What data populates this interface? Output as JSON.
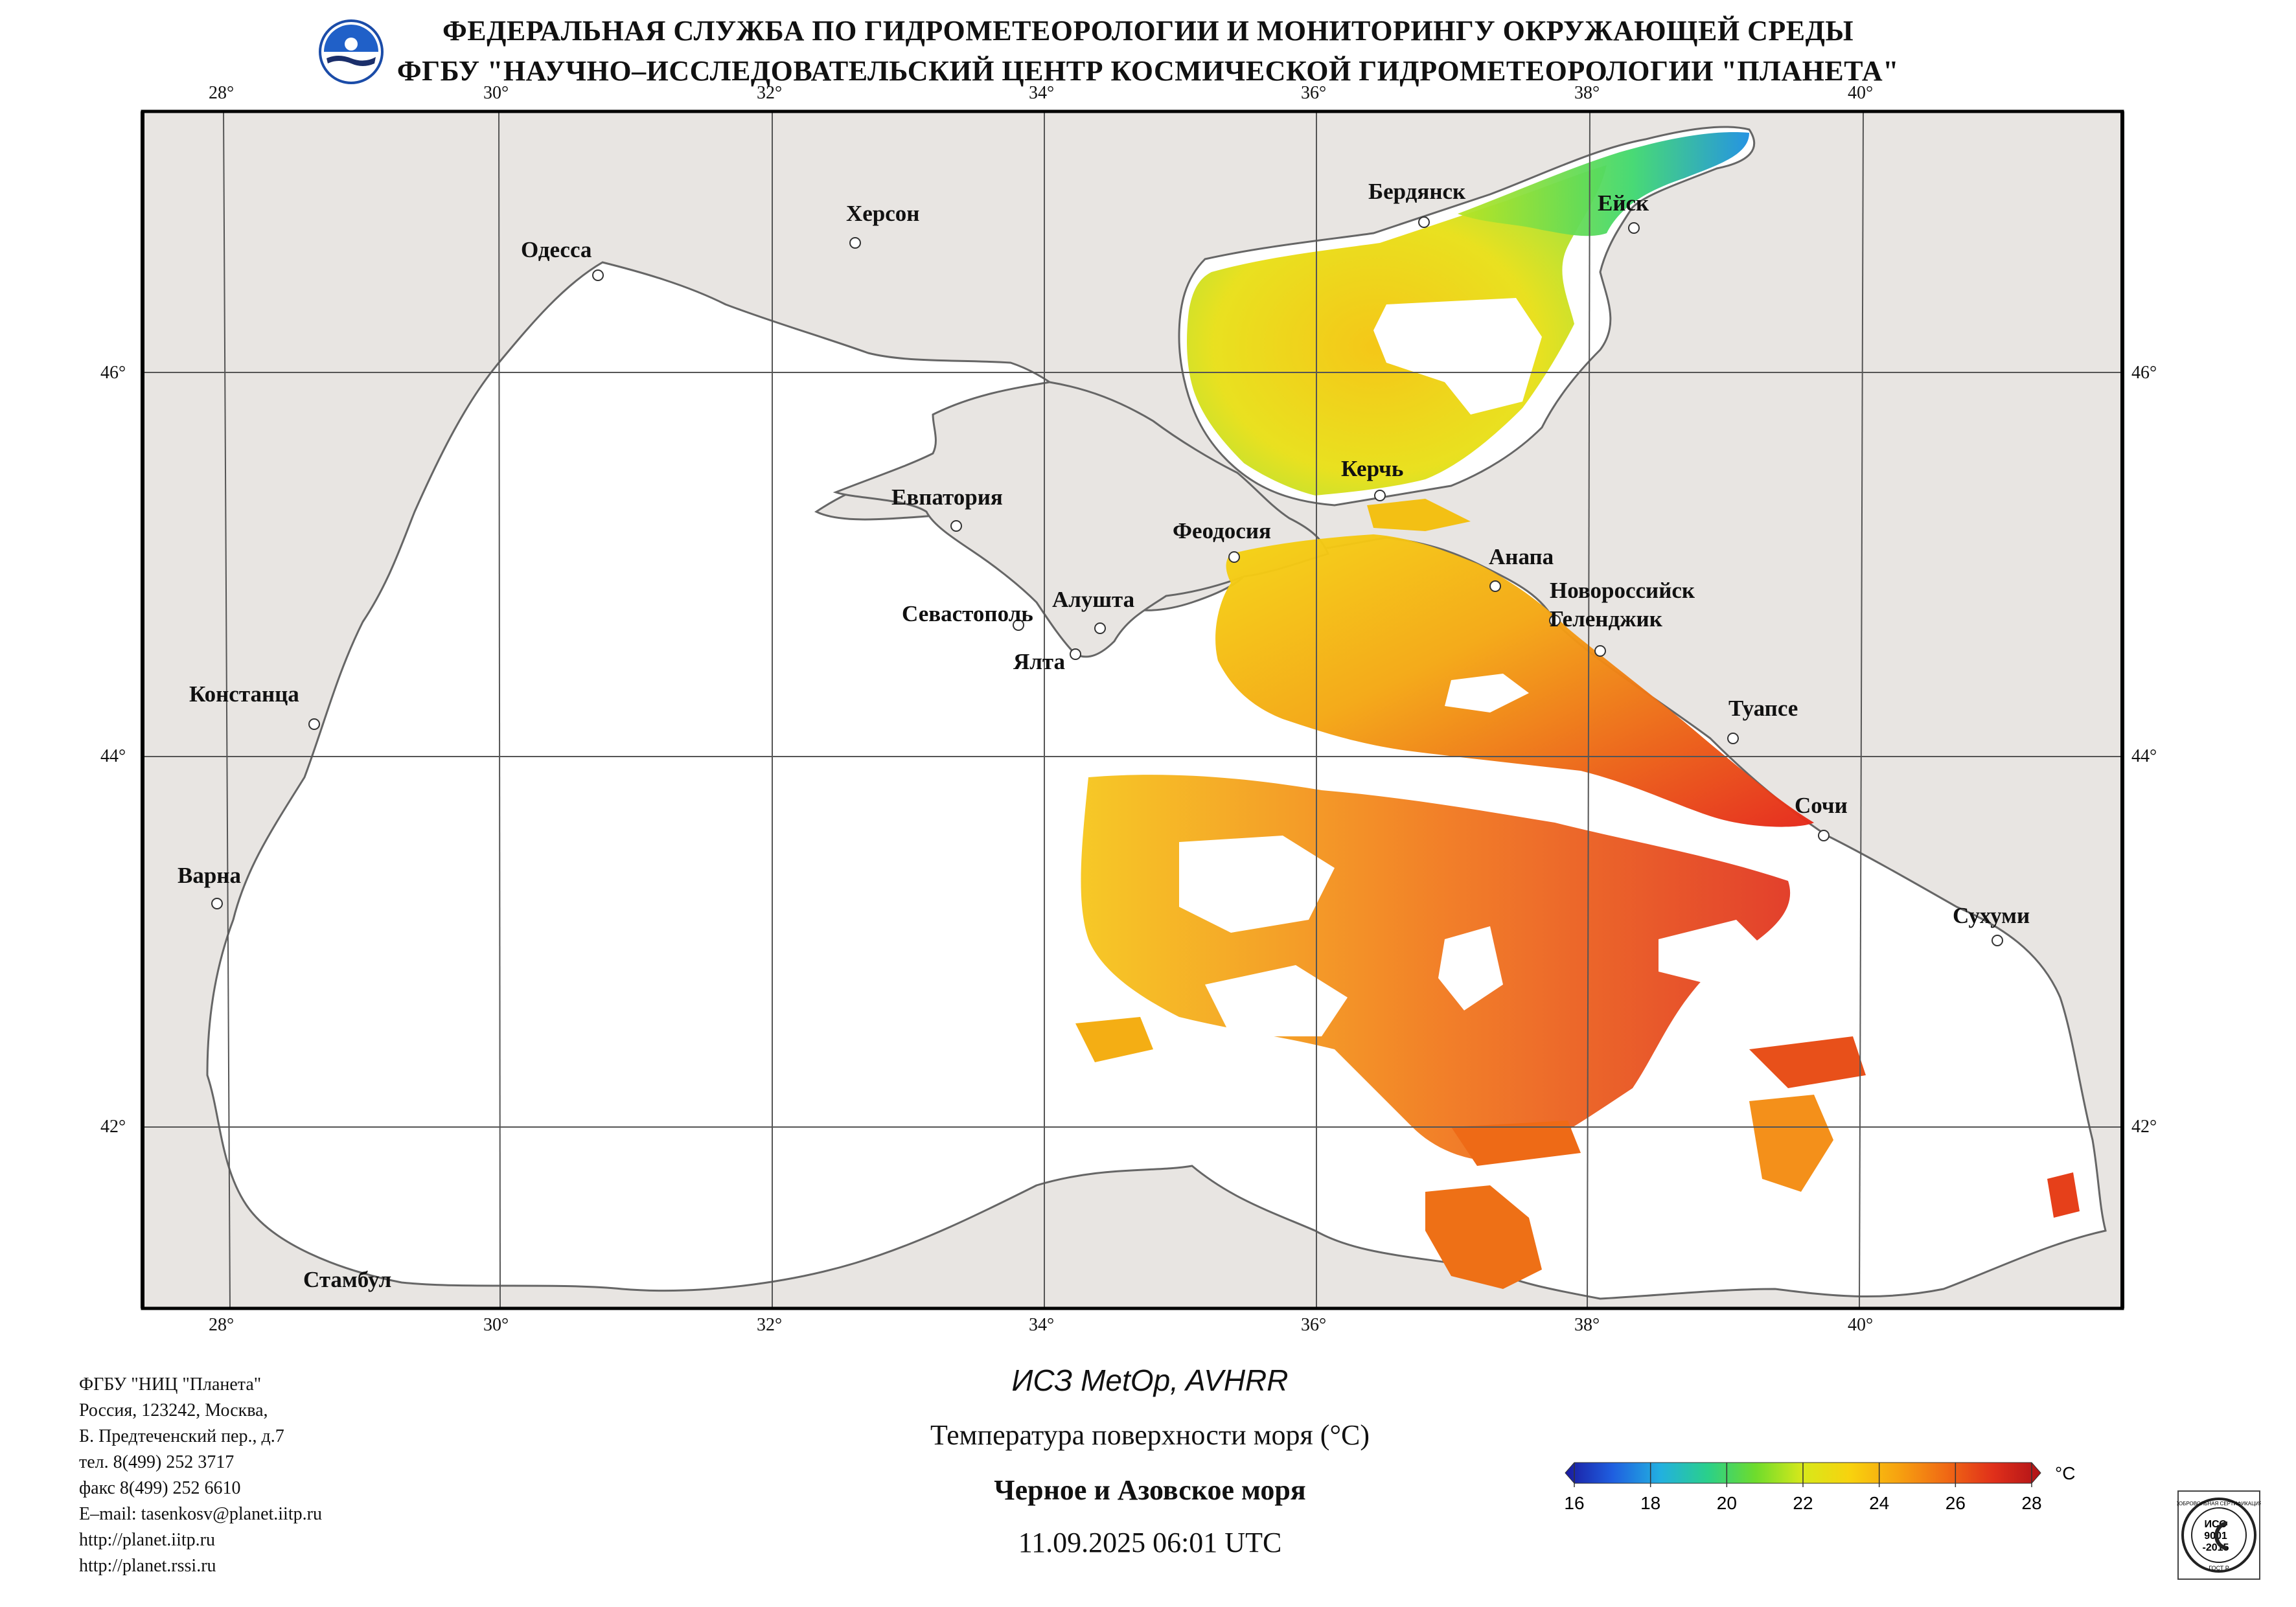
{
  "header": {
    "line1": "ФЕДЕРАЛЬНАЯ СЛУЖБА ПО ГИДРОМЕТЕОРОЛОГИИ И МОНИТОРИНГУ ОКРУЖАЮЩЕЙ СРЕДЫ",
    "line2": "ФГБУ \"НАУЧНО–ИССЛЕДОВАТЕЛЬСКИЙ ЦЕНТР КОСМИЧЕСКОЙ ГИДРОМЕТЕОРОЛОГИИ \"ПЛАНЕТА\""
  },
  "logo_icon": "roshydromet-logo-icon",
  "map": {
    "lon_ticks": [
      "28°",
      "30°",
      "32°",
      "34°",
      "36°",
      "38°",
      "40°"
    ],
    "lat_ticks": [
      "46°",
      "44°",
      "42°"
    ],
    "cities": [
      "Бердянск",
      "Ейск",
      "Херсон",
      "Одесса",
      "Керчь",
      "Евпатория",
      "Феодосия",
      "Анапа",
      "Новороссийск",
      "Геленджик",
      "Алушта",
      "Севастополь",
      "Ялта",
      "Констанца",
      "Туапсе",
      "Сочи",
      "Варна",
      "Сухуми",
      "Стамбул"
    ],
    "colors": {
      "land": "#e8e5e2",
      "sea": "#ffffff",
      "border": "#666666",
      "grid": "#555555"
    }
  },
  "info": {
    "org": "ФГБУ \"НИЦ \"Планета\"",
    "addr1": "Россия, 123242, Москва,",
    "addr2": "Б. Предтеченский пер., д.7",
    "tel": "тел. 8(499) 252 3717",
    "fax": "факс 8(499) 252 6610",
    "email": "E–mail: tasenkosv@planet.iitp.ru",
    "url1": "http://planet.iitp.ru",
    "url2": "http://planet.rssi.ru"
  },
  "caption": {
    "satellite": "ИСЗ MetOp, AVHRR",
    "parameter": "Температура поверхности моря (°C)",
    "region": "Черное и Азовское моря",
    "datetime": "11.09.2025 06:01 UTC"
  },
  "colorbar": {
    "unit": "°C",
    "ticks": [
      "16",
      "18",
      "20",
      "22",
      "24",
      "26",
      "28"
    ],
    "colors": [
      "#1a1aa0",
      "#1f5fe0",
      "#22b0e0",
      "#2ad08a",
      "#6edc2c",
      "#d8e81a",
      "#f8d20e",
      "#f7a210",
      "#f06a14",
      "#e0301a",
      "#b01218"
    ]
  },
  "iso_badge": {
    "ring_top": "ДОБРОВОЛЬНАЯ СЕРТИФИКАЦИЯ",
    "line1": "ИСО",
    "line2": "9001",
    "line3": "-2015",
    "ring_bottom": "ГОСТ Р"
  }
}
